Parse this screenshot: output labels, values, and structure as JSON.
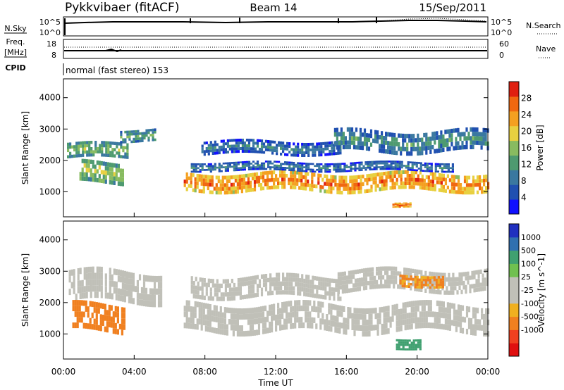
{
  "header": {
    "title": "Pykkvibaer (fitACF)",
    "beam": "Beam 14",
    "date": "15/Sep/2011"
  },
  "nsky_panel": {
    "left_label": "N.Sky",
    "right_label": "N.Search",
    "left_ticks": [
      "10^5",
      "10^0"
    ],
    "right_ticks": [
      "10^5",
      "10^0"
    ]
  },
  "freq_panel": {
    "left_label_1": "Freq.",
    "left_label_2": "[MHz]",
    "right_label": "Nave",
    "left_ticks": [
      "18",
      "8"
    ],
    "right_ticks": [
      "60",
      "0"
    ]
  },
  "cpid_panel": {
    "label": "CPID",
    "text": "normal (fast stereo) 153"
  },
  "colors": {
    "power_scale": [
      "#1010ff",
      "#2050b0",
      "#3a78a0",
      "#4e9a70",
      "#88bb60",
      "#e8d040",
      "#f4a020",
      "#f06810",
      "#e02010"
    ],
    "velocity_scale": [
      "#e01010",
      "#f04020",
      "#f08020",
      "#f0b020",
      "#c0c0b8",
      "#c0c0b8",
      "#70c050",
      "#40a070",
      "#3070b0",
      "#2030c0"
    ]
  },
  "chart_data": [
    {
      "type": "heatmap",
      "name": "power",
      "xlabel": "",
      "ylabel": "Slant Range [km]",
      "ylim": [
        200,
        4600
      ],
      "yticks": [
        "1000",
        "2000",
        "3000",
        "4000"
      ],
      "colorbar_label": "Power [dB]",
      "colorbar_ticks": [
        "4",
        "8",
        "12",
        "16",
        "20",
        "24",
        "28"
      ],
      "colorbar_range": [
        0,
        32
      ],
      "bands": [
        {
          "t0": 0.2,
          "t1": 3.6,
          "r_center": 2300,
          "r_width": 500,
          "level": 16
        },
        {
          "t0": 0.9,
          "t1": 3.4,
          "r_center": 1600,
          "r_width": 700,
          "level": 18
        },
        {
          "t0": 3.2,
          "t1": 5.2,
          "r_center": 2800,
          "r_width": 400,
          "level": 14
        },
        {
          "t0": 6.8,
          "t1": 24.0,
          "r_center": 1300,
          "r_width": 600,
          "level": 26
        },
        {
          "t0": 7.2,
          "t1": 22.0,
          "r_center": 1800,
          "r_width": 300,
          "level": 10
        },
        {
          "t0": 7.8,
          "t1": 15.6,
          "r_center": 2400,
          "r_width": 450,
          "level": 10
        },
        {
          "t0": 15.3,
          "t1": 24.0,
          "r_center": 2600,
          "r_width": 700,
          "level": 12
        },
        {
          "t0": 18.6,
          "t1": 19.6,
          "r_center": 600,
          "r_width": 150,
          "level": 28
        }
      ]
    },
    {
      "type": "heatmap",
      "name": "velocity",
      "xlabel": "Time UT",
      "ylabel": "Slant Range [km]",
      "ylim": [
        200,
        4600
      ],
      "yticks": [
        "1000",
        "2000",
        "3000",
        "4000"
      ],
      "xticks": [
        "00:00",
        "04:00",
        "08:00",
        "12:00",
        "16:00",
        "20:00",
        "00:00"
      ],
      "xlim": [
        0,
        24
      ],
      "colorbar_label": "Velocity [m s^-1]",
      "colorbar_ticks": [
        "1000",
        "500",
        "100",
        "25",
        "-25",
        "-100",
        "-500",
        "-1000"
      ],
      "bands": [
        {
          "t0": 0.3,
          "t1": 5.5,
          "r_center": 2500,
          "r_width": 1000,
          "level": 0
        },
        {
          "t0": 0.5,
          "t1": 3.5,
          "r_center": 1500,
          "r_width": 900,
          "level": -300
        },
        {
          "t0": 6.8,
          "t1": 24.0,
          "r_center": 1500,
          "r_width": 900,
          "level": 0
        },
        {
          "t0": 7.2,
          "t1": 15.6,
          "r_center": 2500,
          "r_width": 700,
          "level": 0
        },
        {
          "t0": 15.5,
          "t1": 24.0,
          "r_center": 2700,
          "r_width": 700,
          "level": 0
        },
        {
          "t0": 19.0,
          "t1": 21.5,
          "r_center": 2700,
          "r_width": 400,
          "level": -150
        },
        {
          "t0": 18.8,
          "t1": 20.2,
          "r_center": 700,
          "r_width": 350,
          "level": 300
        }
      ]
    }
  ]
}
